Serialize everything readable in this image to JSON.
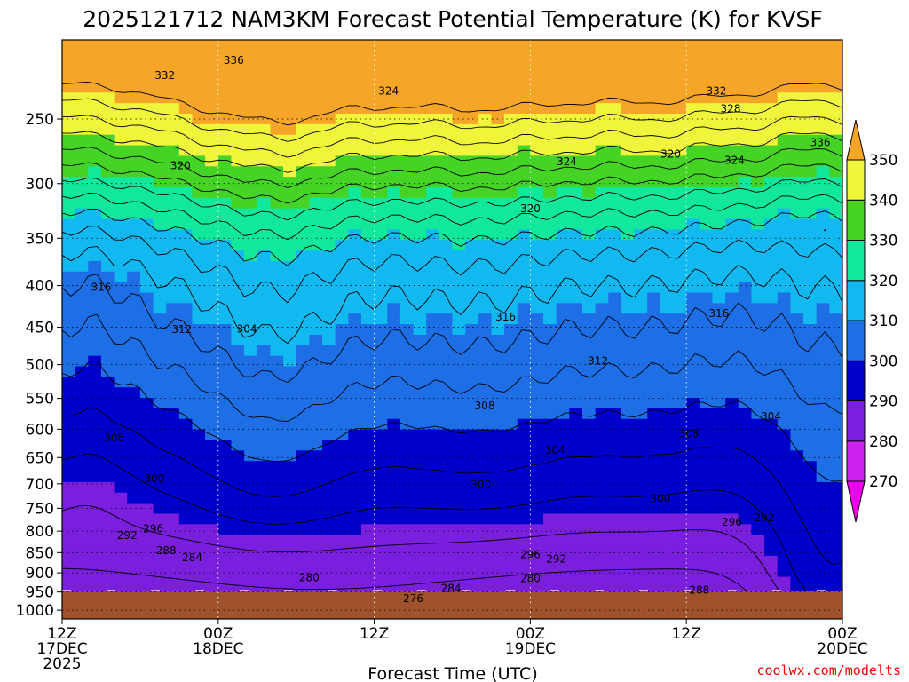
{
  "chart_data": {
    "type": "heatmap",
    "title": "2025121712 NAM3KM Forecast Potential Temperature (K) for KVSF",
    "xlabel": "Forecast Time (UTC)",
    "ylabel": "",
    "x_range_hours": [
      0,
      60
    ],
    "y_range_hPa": [
      200,
      1025
    ],
    "y_scale": "log-pressure (inverted)",
    "grid": "dotted",
    "legend": "right colorbar",
    "x_ticks": [
      {
        "hour": 0,
        "line1": "12Z",
        "line2": "17DEC",
        "line3": "2025"
      },
      {
        "hour": 12,
        "line1": "00Z",
        "line2": "18DEC",
        "line3": ""
      },
      {
        "hour": 24,
        "line1": "12Z",
        "line2": "",
        "line3": ""
      },
      {
        "hour": 36,
        "line1": "00Z",
        "line2": "19DEC",
        "line3": ""
      },
      {
        "hour": 48,
        "line1": "12Z",
        "line2": "",
        "line3": ""
      },
      {
        "hour": 60,
        "line1": "00Z",
        "line2": "20DEC",
        "line3": ""
      }
    ],
    "y_ticks": [
      250,
      300,
      350,
      400,
      450,
      500,
      550,
      600,
      650,
      700,
      750,
      800,
      850,
      900,
      950,
      1000
    ],
    "colorbar": {
      "levels": [
        270,
        280,
        290,
        300,
        310,
        320,
        330,
        340,
        350
      ],
      "colors": [
        "#ee00ee",
        "#cc22ee",
        "#7a1fdd",
        "#0000cc",
        "#1e6fe6",
        "#12b8f0",
        "#12e89c",
        "#45d425",
        "#f0f53c",
        "#f5a528"
      ]
    },
    "contour_labels": [
      {
        "value": "336",
        "hour": 13.2,
        "hPa": 212
      },
      {
        "value": "332",
        "hour": 7.9,
        "hPa": 221
      },
      {
        "value": "324",
        "hour": 25.1,
        "hPa": 231
      },
      {
        "value": "332",
        "hour": 50.3,
        "hPa": 231
      },
      {
        "value": "328",
        "hour": 51.4,
        "hPa": 243
      },
      {
        "value": "336",
        "hour": 58.3,
        "hPa": 267
      },
      {
        "value": "320",
        "hour": 9.1,
        "hPa": 285
      },
      {
        "value": "324",
        "hour": 38.8,
        "hPa": 282
      },
      {
        "value": "320",
        "hour": 46.8,
        "hPa": 276
      },
      {
        "value": "324",
        "hour": 51.7,
        "hPa": 281
      },
      {
        "value": "320",
        "hour": 36.0,
        "hPa": 322
      },
      {
        "value": "316",
        "hour": 3.0,
        "hPa": 402
      },
      {
        "value": "316",
        "hour": 34.1,
        "hPa": 437
      },
      {
        "value": "316",
        "hour": 50.5,
        "hPa": 433
      },
      {
        "value": "312",
        "hour": 9.2,
        "hPa": 453
      },
      {
        "value": "304",
        "hour": 14.2,
        "hPa": 452
      },
      {
        "value": "312",
        "hour": 41.2,
        "hPa": 495
      },
      {
        "value": "308",
        "hour": 32.5,
        "hPa": 562
      },
      {
        "value": "304",
        "hour": 54.5,
        "hPa": 579
      },
      {
        "value": "308",
        "hour": 4.0,
        "hPa": 615
      },
      {
        "value": "308",
        "hour": 48.2,
        "hPa": 608
      },
      {
        "value": "304",
        "hour": 37.9,
        "hPa": 637
      },
      {
        "value": "300",
        "hour": 7.1,
        "hPa": 690
      },
      {
        "value": "300",
        "hour": 32.2,
        "hPa": 701
      },
      {
        "value": "300",
        "hour": 46.0,
        "hPa": 730
      },
      {
        "value": "296",
        "hour": 7.0,
        "hPa": 795
      },
      {
        "value": "292",
        "hour": 5.0,
        "hPa": 810
      },
      {
        "value": "296",
        "hour": 51.5,
        "hPa": 780
      },
      {
        "value": "292",
        "hour": 54.0,
        "hPa": 770
      },
      {
        "value": "288",
        "hour": 8.0,
        "hPa": 845
      },
      {
        "value": "284",
        "hour": 10.0,
        "hPa": 862
      },
      {
        "value": "296",
        "hour": 36.0,
        "hPa": 855
      },
      {
        "value": "292",
        "hour": 38.0,
        "hPa": 865
      },
      {
        "value": "280",
        "hour": 19.0,
        "hPa": 912
      },
      {
        "value": "280",
        "hour": 36.0,
        "hPa": 915
      },
      {
        "value": "284",
        "hour": 29.9,
        "hPa": 940
      },
      {
        "value": "288",
        "hour": 49.0,
        "hPa": 945
      },
      {
        "value": "276",
        "hour": 27.0,
        "hPa": 968
      }
    ],
    "credit": "coolwx.com/modelts",
    "credit_color": "#ff0000"
  }
}
